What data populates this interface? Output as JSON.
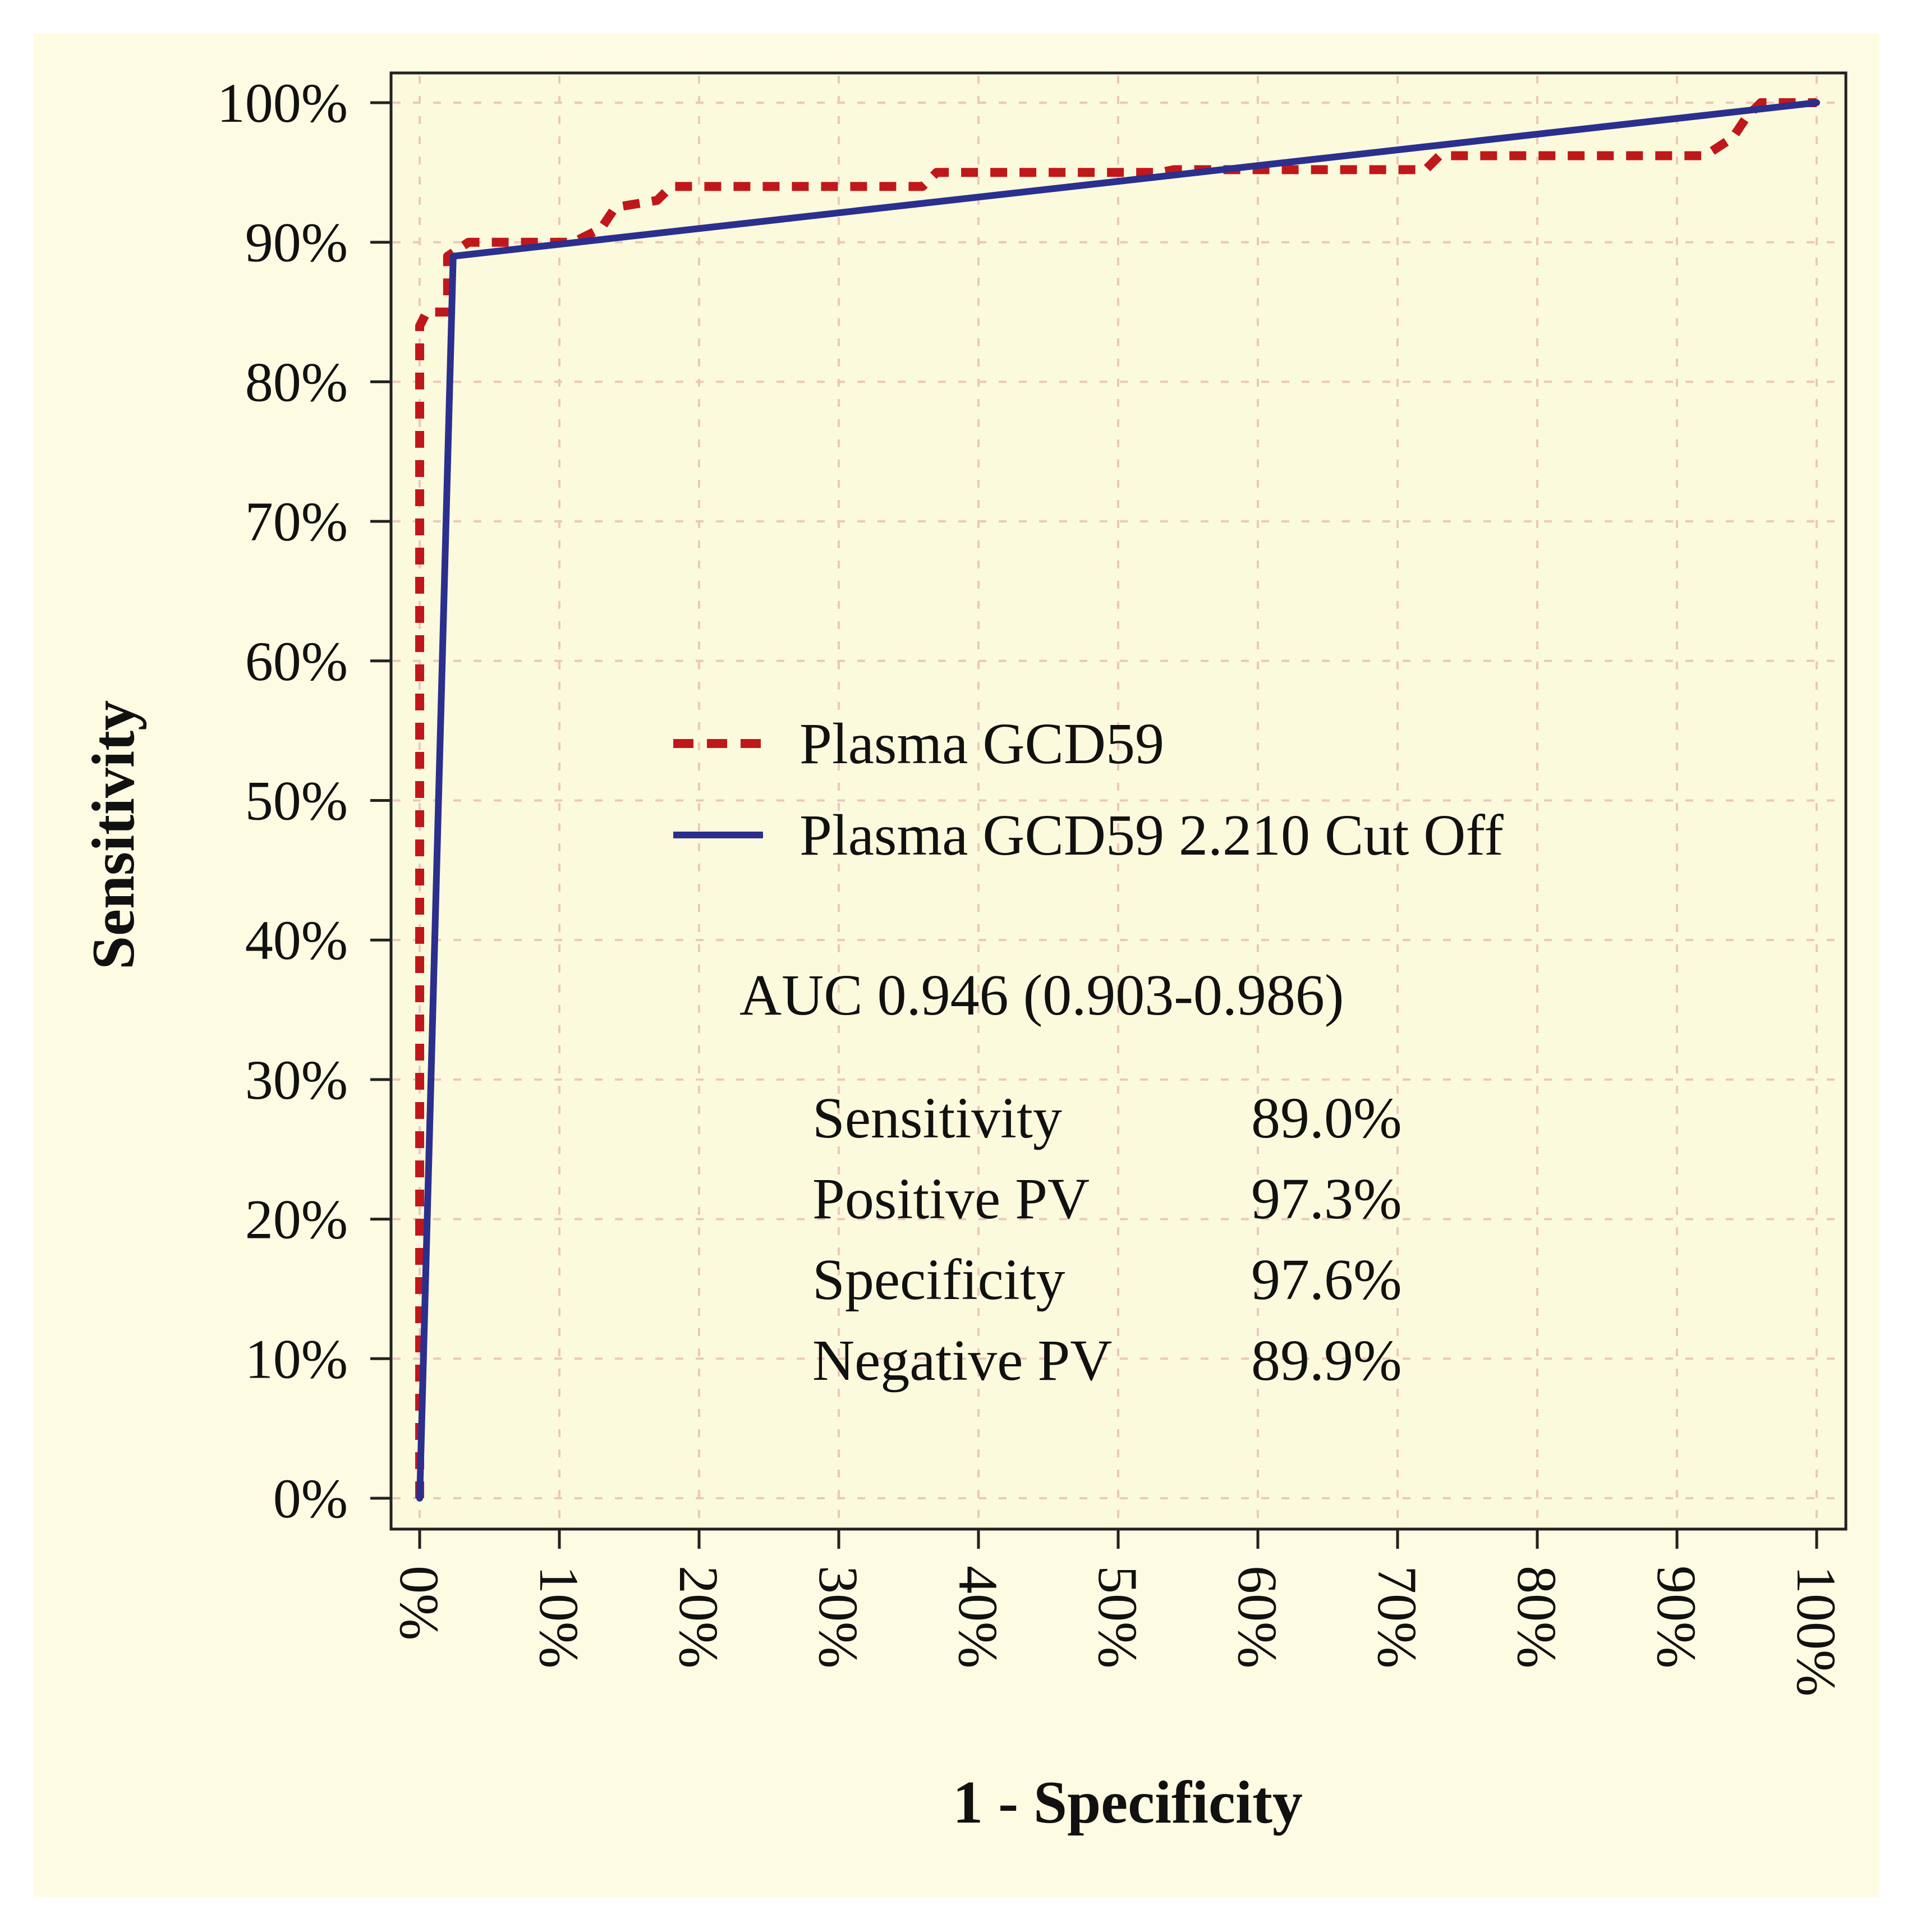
{
  "chart_data": {
    "type": "line",
    "title": "",
    "xlabel": "1 - Specificity",
    "ylabel": "Sensitivity",
    "xlim": [
      0,
      100
    ],
    "ylim": [
      0,
      100
    ],
    "grid": true,
    "x_ticks": [
      "0%",
      "10%",
      "20%",
      "30%",
      "40%",
      "50%",
      "60%",
      "70%",
      "80%",
      "90%",
      "100%"
    ],
    "y_ticks": [
      "0%",
      "10%",
      "20%",
      "30%",
      "40%",
      "50%",
      "60%",
      "70%",
      "80%",
      "90%",
      "100%"
    ],
    "legend_position": "center",
    "series": [
      {
        "name": "Plasma GCD59",
        "style": "dashed",
        "color": "#c0181a",
        "points": [
          [
            0,
            0
          ],
          [
            0,
            84
          ],
          [
            0.5,
            85
          ],
          [
            2,
            85
          ],
          [
            2,
            89
          ],
          [
            3.5,
            90
          ],
          [
            11,
            90
          ],
          [
            13,
            91
          ],
          [
            14,
            92.5
          ],
          [
            17,
            93
          ],
          [
            18,
            94
          ],
          [
            36,
            94
          ],
          [
            37,
            95
          ],
          [
            53,
            95
          ],
          [
            54,
            95.2
          ],
          [
            72,
            95.2
          ],
          [
            73,
            96.2
          ],
          [
            92,
            96.2
          ],
          [
            94,
            97.5
          ],
          [
            95,
            99
          ],
          [
            96,
            100
          ],
          [
            100,
            100
          ]
        ]
      },
      {
        "name": "Plasma GCD59 2.210 Cut Off",
        "style": "solid",
        "color": "#2b2f8e",
        "points": [
          [
            0,
            0
          ],
          [
            2.4,
            89
          ],
          [
            100,
            100
          ]
        ]
      }
    ],
    "annotations": {
      "auc": "AUC 0.946 (0.903-0.986)",
      "stats": [
        {
          "label": "Sensitivity",
          "value": "89.0%"
        },
        {
          "label": "Positive PV",
          "value": "97.3%"
        },
        {
          "label": "Specificity",
          "value": "97.6%"
        },
        {
          "label": "Negative PV",
          "value": "89.9%"
        }
      ]
    }
  },
  "colors": {
    "outer_background": "#fdfbe1",
    "plot_background": "#fcfadc",
    "grid": "#ecc7bc",
    "axis": "#222222"
  }
}
